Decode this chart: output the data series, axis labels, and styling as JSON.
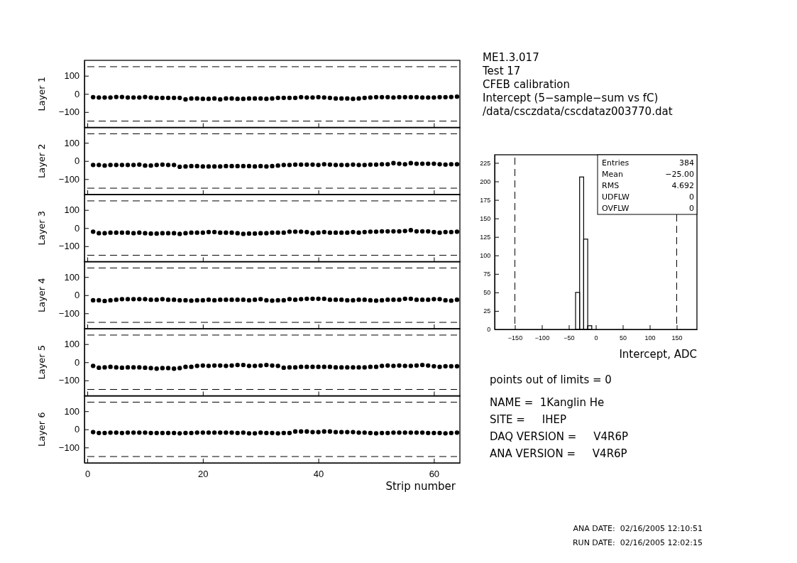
{
  "chart_data": [
    {
      "type": "scatter",
      "ylabel": "Layer 1",
      "x": [
        1,
        2,
        3,
        4,
        5,
        6,
        7,
        8,
        9,
        10,
        11,
        12,
        13,
        14,
        15,
        16,
        17,
        18,
        19,
        20,
        21,
        22,
        23,
        24,
        25,
        26,
        27,
        28,
        29,
        30,
        31,
        32,
        33,
        34,
        35,
        36,
        37,
        38,
        39,
        40,
        41,
        42,
        43,
        44,
        45,
        46,
        47,
        48,
        49,
        50,
        51,
        52,
        53,
        54,
        55,
        56,
        57,
        58,
        59,
        60,
        61,
        62,
        63,
        64
      ],
      "xlim": [
        -0.5,
        64.5
      ],
      "xticks": [
        0,
        20,
        40,
        60
      ],
      "ylim": [
        -185,
        185
      ],
      "yticks": [
        -100,
        0,
        100
      ],
      "tick_labels": "y",
      "marker": "circle",
      "series": [
        {
          "color": "#000000",
          "values": [
            -18,
            -20,
            -20,
            -20,
            -17,
            -17,
            -20,
            -20,
            -20,
            -17,
            -20,
            -22,
            -22,
            -22,
            -22,
            -22,
            -30,
            -25,
            -25,
            -27,
            -27,
            -25,
            -30,
            -25,
            -25,
            -27,
            -27,
            -25,
            -25,
            -25,
            -27,
            -25,
            -22,
            -22,
            -22,
            -22,
            -18,
            -20,
            -20,
            -18,
            -20,
            -22,
            -25,
            -25,
            -25,
            -27,
            -25,
            -22,
            -20,
            -18,
            -18,
            -18,
            -20,
            -18,
            -18,
            -18,
            -18,
            -20,
            -20,
            -20,
            -18,
            -18,
            -17,
            -15
          ]
        }
      ],
      "ref_lines": [
        {
          "axis": "y",
          "value": 150,
          "line_style": "dashed"
        },
        {
          "axis": "y",
          "value": -150,
          "line_style": "dashed"
        }
      ]
    },
    {
      "type": "scatter",
      "ylabel": "Layer 2",
      "x": [
        1,
        2,
        3,
        4,
        5,
        6,
        7,
        8,
        9,
        10,
        11,
        12,
        13,
        14,
        15,
        16,
        17,
        18,
        19,
        20,
        21,
        22,
        23,
        24,
        25,
        26,
        27,
        28,
        29,
        30,
        31,
        32,
        33,
        34,
        35,
        36,
        37,
        38,
        39,
        40,
        41,
        42,
        43,
        44,
        45,
        46,
        47,
        48,
        49,
        50,
        51,
        52,
        53,
        54,
        55,
        56,
        57,
        58,
        59,
        60,
        61,
        62,
        63,
        64
      ],
      "xlim": [
        -0.5,
        64.5
      ],
      "xticks": [
        0,
        20,
        40,
        60
      ],
      "ylim": [
        -185,
        185
      ],
      "yticks": [
        -100,
        0,
        100
      ],
      "tick_labels": "y",
      "marker": "circle",
      "series": [
        {
          "color": "#000000",
          "values": [
            -22,
            -22,
            -25,
            -22,
            -22,
            -22,
            -22,
            -22,
            -20,
            -25,
            -25,
            -22,
            -20,
            -22,
            -22,
            -32,
            -30,
            -28,
            -28,
            -30,
            -30,
            -30,
            -30,
            -28,
            -28,
            -28,
            -28,
            -28,
            -30,
            -28,
            -30,
            -28,
            -25,
            -22,
            -22,
            -20,
            -20,
            -20,
            -20,
            -22,
            -18,
            -20,
            -22,
            -22,
            -22,
            -20,
            -22,
            -22,
            -20,
            -20,
            -18,
            -18,
            -12,
            -15,
            -18,
            -12,
            -15,
            -15,
            -15,
            -15,
            -18,
            -20,
            -18,
            -18
          ]
        }
      ],
      "ref_lines": [
        {
          "axis": "y",
          "value": 150,
          "line_style": "dashed"
        },
        {
          "axis": "y",
          "value": -150,
          "line_style": "dashed"
        }
      ]
    },
    {
      "type": "scatter",
      "ylabel": "Layer 3",
      "x": [
        1,
        2,
        3,
        4,
        5,
        6,
        7,
        8,
        9,
        10,
        11,
        12,
        13,
        14,
        15,
        16,
        17,
        18,
        19,
        20,
        21,
        22,
        23,
        24,
        25,
        26,
        27,
        28,
        29,
        30,
        31,
        32,
        33,
        34,
        35,
        36,
        37,
        38,
        39,
        40,
        41,
        42,
        43,
        44,
        45,
        46,
        47,
        48,
        49,
        50,
        51,
        52,
        53,
        54,
        55,
        56,
        57,
        58,
        59,
        60,
        61,
        62,
        63,
        64
      ],
      "xlim": [
        -0.5,
        64.5
      ],
      "xticks": [
        0,
        20,
        40,
        60
      ],
      "ylim": [
        -185,
        185
      ],
      "yticks": [
        -100,
        0,
        100
      ],
      "tick_labels": "y",
      "marker": "circle",
      "series": [
        {
          "color": "#000000",
          "values": [
            -20,
            -28,
            -28,
            -25,
            -25,
            -25,
            -25,
            -28,
            -25,
            -28,
            -30,
            -30,
            -28,
            -28,
            -28,
            -32,
            -28,
            -25,
            -25,
            -25,
            -22,
            -22,
            -25,
            -25,
            -25,
            -28,
            -32,
            -30,
            -30,
            -28,
            -28,
            -25,
            -25,
            -25,
            -20,
            -20,
            -20,
            -22,
            -28,
            -25,
            -22,
            -25,
            -25,
            -25,
            -25,
            -22,
            -25,
            -22,
            -20,
            -20,
            -18,
            -18,
            -18,
            -18,
            -16,
            -12,
            -18,
            -18,
            -18,
            -22,
            -25,
            -22,
            -22,
            -20
          ]
        }
      ],
      "ref_lines": [
        {
          "axis": "y",
          "value": 150,
          "line_style": "dashed"
        },
        {
          "axis": "y",
          "value": -150,
          "line_style": "dashed"
        }
      ]
    },
    {
      "type": "scatter",
      "ylabel": "Layer 4",
      "x": [
        1,
        2,
        3,
        4,
        5,
        6,
        7,
        8,
        9,
        10,
        11,
        12,
        13,
        14,
        15,
        16,
        17,
        18,
        19,
        20,
        21,
        22,
        23,
        24,
        25,
        26,
        27,
        28,
        29,
        30,
        31,
        32,
        33,
        34,
        35,
        36,
        37,
        38,
        39,
        40,
        41,
        42,
        43,
        44,
        45,
        46,
        47,
        48,
        49,
        50,
        51,
        52,
        53,
        54,
        55,
        56,
        57,
        58,
        59,
        60,
        61,
        62,
        63,
        64
      ],
      "xlim": [
        -0.5,
        64.5
      ],
      "xticks": [
        0,
        20,
        40,
        60
      ],
      "ylim": [
        -185,
        185
      ],
      "yticks": [
        -100,
        0,
        100
      ],
      "tick_labels": "y",
      "marker": "circle",
      "series": [
        {
          "color": "#000000",
          "values": [
            -28,
            -28,
            -32,
            -28,
            -25,
            -22,
            -22,
            -22,
            -22,
            -22,
            -25,
            -25,
            -22,
            -25,
            -25,
            -28,
            -28,
            -30,
            -28,
            -28,
            -25,
            -28,
            -25,
            -25,
            -25,
            -25,
            -25,
            -28,
            -25,
            -22,
            -28,
            -30,
            -28,
            -28,
            -22,
            -25,
            -22,
            -20,
            -20,
            -20,
            -20,
            -25,
            -25,
            -25,
            -28,
            -28,
            -25,
            -25,
            -28,
            -30,
            -28,
            -25,
            -25,
            -25,
            -20,
            -20,
            -25,
            -25,
            -25,
            -22,
            -22,
            -28,
            -30,
            -25
          ]
        }
      ],
      "ref_lines": [
        {
          "axis": "y",
          "value": 150,
          "line_style": "dashed"
        },
        {
          "axis": "y",
          "value": -150,
          "line_style": "dashed"
        }
      ]
    },
    {
      "type": "scatter",
      "ylabel": "Layer 5",
      "x": [
        1,
        2,
        3,
        4,
        5,
        6,
        7,
        8,
        9,
        10,
        11,
        12,
        13,
        14,
        15,
        16,
        17,
        18,
        19,
        20,
        21,
        22,
        23,
        24,
        25,
        26,
        27,
        28,
        29,
        30,
        31,
        32,
        33,
        34,
        35,
        36,
        37,
        38,
        39,
        40,
        41,
        42,
        43,
        44,
        45,
        46,
        47,
        48,
        49,
        50,
        51,
        52,
        53,
        54,
        55,
        56,
        57,
        58,
        59,
        60,
        61,
        62,
        63,
        64
      ],
      "xlim": [
        -0.5,
        64.5
      ],
      "xticks": [
        0,
        20,
        40,
        60
      ],
      "ylim": [
        -185,
        185
      ],
      "yticks": [
        -100,
        0,
        100
      ],
      "tick_labels": "y",
      "marker": "circle",
      "series": [
        {
          "color": "#000000",
          "values": [
            -20,
            -30,
            -28,
            -25,
            -28,
            -30,
            -28,
            -28,
            -28,
            -30,
            -32,
            -35,
            -32,
            -32,
            -35,
            -32,
            -25,
            -25,
            -20,
            -18,
            -20,
            -18,
            -18,
            -20,
            -18,
            -15,
            -15,
            -20,
            -20,
            -18,
            -15,
            -18,
            -20,
            -30,
            -28,
            -28,
            -25,
            -25,
            -25,
            -25,
            -25,
            -25,
            -28,
            -28,
            -28,
            -28,
            -28,
            -28,
            -25,
            -25,
            -20,
            -18,
            -20,
            -18,
            -20,
            -20,
            -18,
            -15,
            -18,
            -22,
            -25,
            -22,
            -22,
            -22
          ]
        }
      ],
      "ref_lines": [
        {
          "axis": "y",
          "value": 150,
          "line_style": "dashed"
        },
        {
          "axis": "y",
          "value": -150,
          "line_style": "dashed"
        }
      ]
    },
    {
      "type": "scatter",
      "ylabel": "Layer 6",
      "xlabel": "Strip number",
      "x": [
        1,
        2,
        3,
        4,
        5,
        6,
        7,
        8,
        9,
        10,
        11,
        12,
        13,
        14,
        15,
        16,
        17,
        18,
        19,
        20,
        21,
        22,
        23,
        24,
        25,
        26,
        27,
        28,
        29,
        30,
        31,
        32,
        33,
        34,
        35,
        36,
        37,
        38,
        39,
        40,
        41,
        42,
        43,
        44,
        45,
        46,
        47,
        48,
        49,
        50,
        51,
        52,
        53,
        54,
        55,
        56,
        57,
        58,
        59,
        60,
        61,
        62,
        63,
        64
      ],
      "xlim": [
        -0.5,
        64.5
      ],
      "xticks": [
        0,
        20,
        40,
        60
      ],
      "ylim": [
        -185,
        185
      ],
      "yticks": [
        -100,
        0,
        100
      ],
      "marker": "circle",
      "series": [
        {
          "color": "#000000",
          "values": [
            -15,
            -20,
            -20,
            -18,
            -18,
            -20,
            -18,
            -18,
            -18,
            -18,
            -20,
            -20,
            -20,
            -20,
            -20,
            -22,
            -20,
            -20,
            -18,
            -18,
            -18,
            -18,
            -18,
            -18,
            -18,
            -20,
            -18,
            -22,
            -22,
            -18,
            -20,
            -20,
            -22,
            -20,
            -20,
            -12,
            -12,
            -12,
            -15,
            -15,
            -12,
            -12,
            -15,
            -15,
            -15,
            -15,
            -18,
            -18,
            -20,
            -22,
            -20,
            -20,
            -18,
            -18,
            -18,
            -18,
            -18,
            -18,
            -20,
            -20,
            -20,
            -22,
            -20,
            -18
          ]
        }
      ],
      "ref_lines": [
        {
          "axis": "y",
          "value": 150,
          "line_style": "dashed"
        },
        {
          "axis": "y",
          "value": -150,
          "line_style": "dashed"
        }
      ]
    },
    {
      "type": "histogram",
      "xlabel": "Intercept, ADC",
      "bins": [
        -37.5,
        -30,
        -22.5,
        -15,
        -7.5
      ],
      "values": [
        50,
        206,
        122,
        5
      ],
      "color": "#000000",
      "xlim": [
        -187.5,
        187.5
      ],
      "xticks": [
        -150,
        -100,
        -50,
        0,
        50,
        100,
        150
      ],
      "ylim": [
        0,
        236
      ],
      "yticks": [
        0,
        25,
        50,
        75,
        100,
        125,
        150,
        175,
        200,
        225
      ],
      "ref_lines": [
        {
          "axis": "x",
          "value": -150,
          "line_style": "dashed"
        },
        {
          "axis": "x",
          "value": 150,
          "line_style": "dashed"
        }
      ],
      "annotations": [
        "Entries 384",
        "Mean −25.00",
        "RMS 4.692",
        "UDFLW 0",
        "OVFLW 0"
      ]
    },
    {
      "type": "other",
      "annotations": [
        "ME1.3.017",
        "Test 17",
        "CFEB calibration",
        "Intercept (5−sample−sum vs fC)",
        "/data/csczdata/cscdataz003770.dat"
      ]
    },
    {
      "type": "other",
      "annotations": [
        "points out of limits = 0",
        "NAME =  1Kanglin He",
        "SITE =     IHEP",
        "DAQ VERSION =     V4R6P",
        "ANA VERSION =     V4R6P"
      ]
    },
    {
      "type": "other",
      "annotations": [
        "ANA DATE:  02/16/2005 12:10:51",
        "RUN DATE:  02/16/2005 12:02:15"
      ]
    }
  ]
}
